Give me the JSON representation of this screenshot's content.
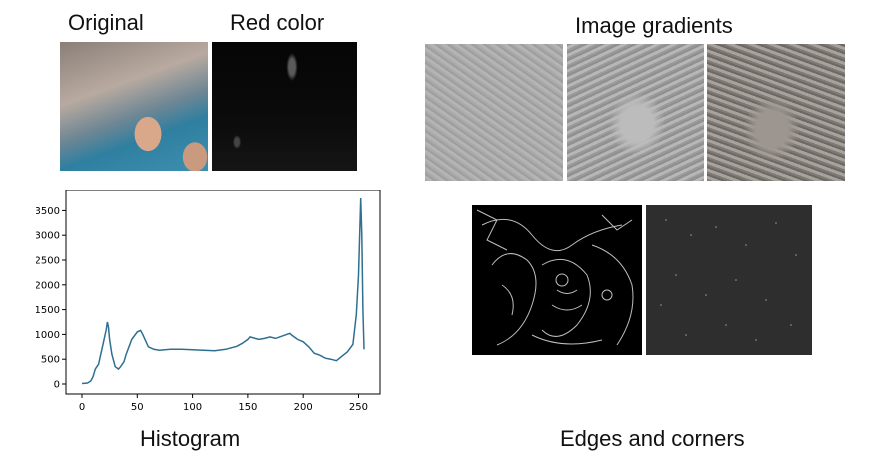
{
  "labels": {
    "original": "Original",
    "red_color": "Red color",
    "image_gradients": "Image gradients",
    "histogram": "Histogram",
    "edges_and_corners": "Edges and corners"
  },
  "chart_data": {
    "type": "line",
    "title": "",
    "xlabel": "",
    "ylabel": "",
    "xlim": [
      0,
      255
    ],
    "ylim": [
      0,
      3750
    ],
    "x_ticks": [
      0,
      50,
      100,
      150,
      200,
      250
    ],
    "y_ticks": [
      0,
      500,
      1000,
      1500,
      2000,
      2500,
      3000,
      3500
    ],
    "grid": false,
    "series": [
      {
        "color": "#2f6f8f",
        "x": [
          0,
          5,
          8,
          10,
          12,
          15,
          18,
          20,
          22,
          23,
          24,
          25,
          27,
          30,
          33,
          35,
          38,
          40,
          45,
          50,
          53,
          55,
          58,
          60,
          65,
          70,
          75,
          80,
          90,
          100,
          110,
          120,
          130,
          140,
          145,
          150,
          152,
          155,
          160,
          165,
          170,
          175,
          180,
          185,
          188,
          190,
          195,
          200,
          205,
          210,
          215,
          220,
          225,
          230,
          235,
          240,
          245,
          248,
          250,
          252,
          253,
          254,
          255
        ],
        "y": [
          10,
          20,
          60,
          150,
          300,
          400,
          700,
          900,
          1100,
          1250,
          1150,
          900,
          600,
          350,
          300,
          350,
          450,
          600,
          900,
          1050,
          1080,
          1000,
          850,
          750,
          700,
          680,
          690,
          700,
          700,
          690,
          680,
          670,
          700,
          760,
          820,
          900,
          950,
          930,
          900,
          920,
          950,
          920,
          960,
          1000,
          1020,
          980,
          900,
          850,
          750,
          620,
          580,
          520,
          500,
          470,
          560,
          650,
          800,
          1400,
          2200,
          3750,
          3000,
          1500,
          700
        ]
      }
    ]
  }
}
